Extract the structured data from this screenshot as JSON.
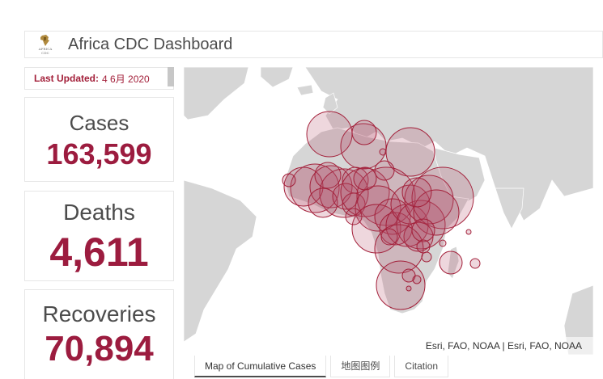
{
  "header": {
    "title": "Africa CDC Dashboard",
    "logo_text": "AFRICA CDC",
    "logo_icon": "africa-cdc-logo"
  },
  "sidebar": {
    "last_updated_label": "Last Updated:",
    "last_updated_value": "4 6月 2020",
    "cards": [
      {
        "label": "Cases",
        "value": "163,599"
      },
      {
        "label": "Deaths",
        "value": "4,611"
      },
      {
        "label": "Recoveries",
        "value": "70,894"
      }
    ]
  },
  "map": {
    "attribution": "Esri, FAO, NOAA | Esri, FAO, NOAA",
    "colors": {
      "water": "#ffffff",
      "land": "#d6d6d6",
      "bubble_fill": "#b34a64",
      "bubble_stroke": "#a3203a"
    }
  },
  "tabs": [
    {
      "label": "Map of Cumulative Cases",
      "active": true
    },
    {
      "label": "地图图例",
      "active": false
    },
    {
      "label": "Citation",
      "active": false
    }
  ],
  "colors": {
    "accent": "#9c1c3f",
    "text": "#4c4c4c",
    "border": "#e6e6e6"
  }
}
